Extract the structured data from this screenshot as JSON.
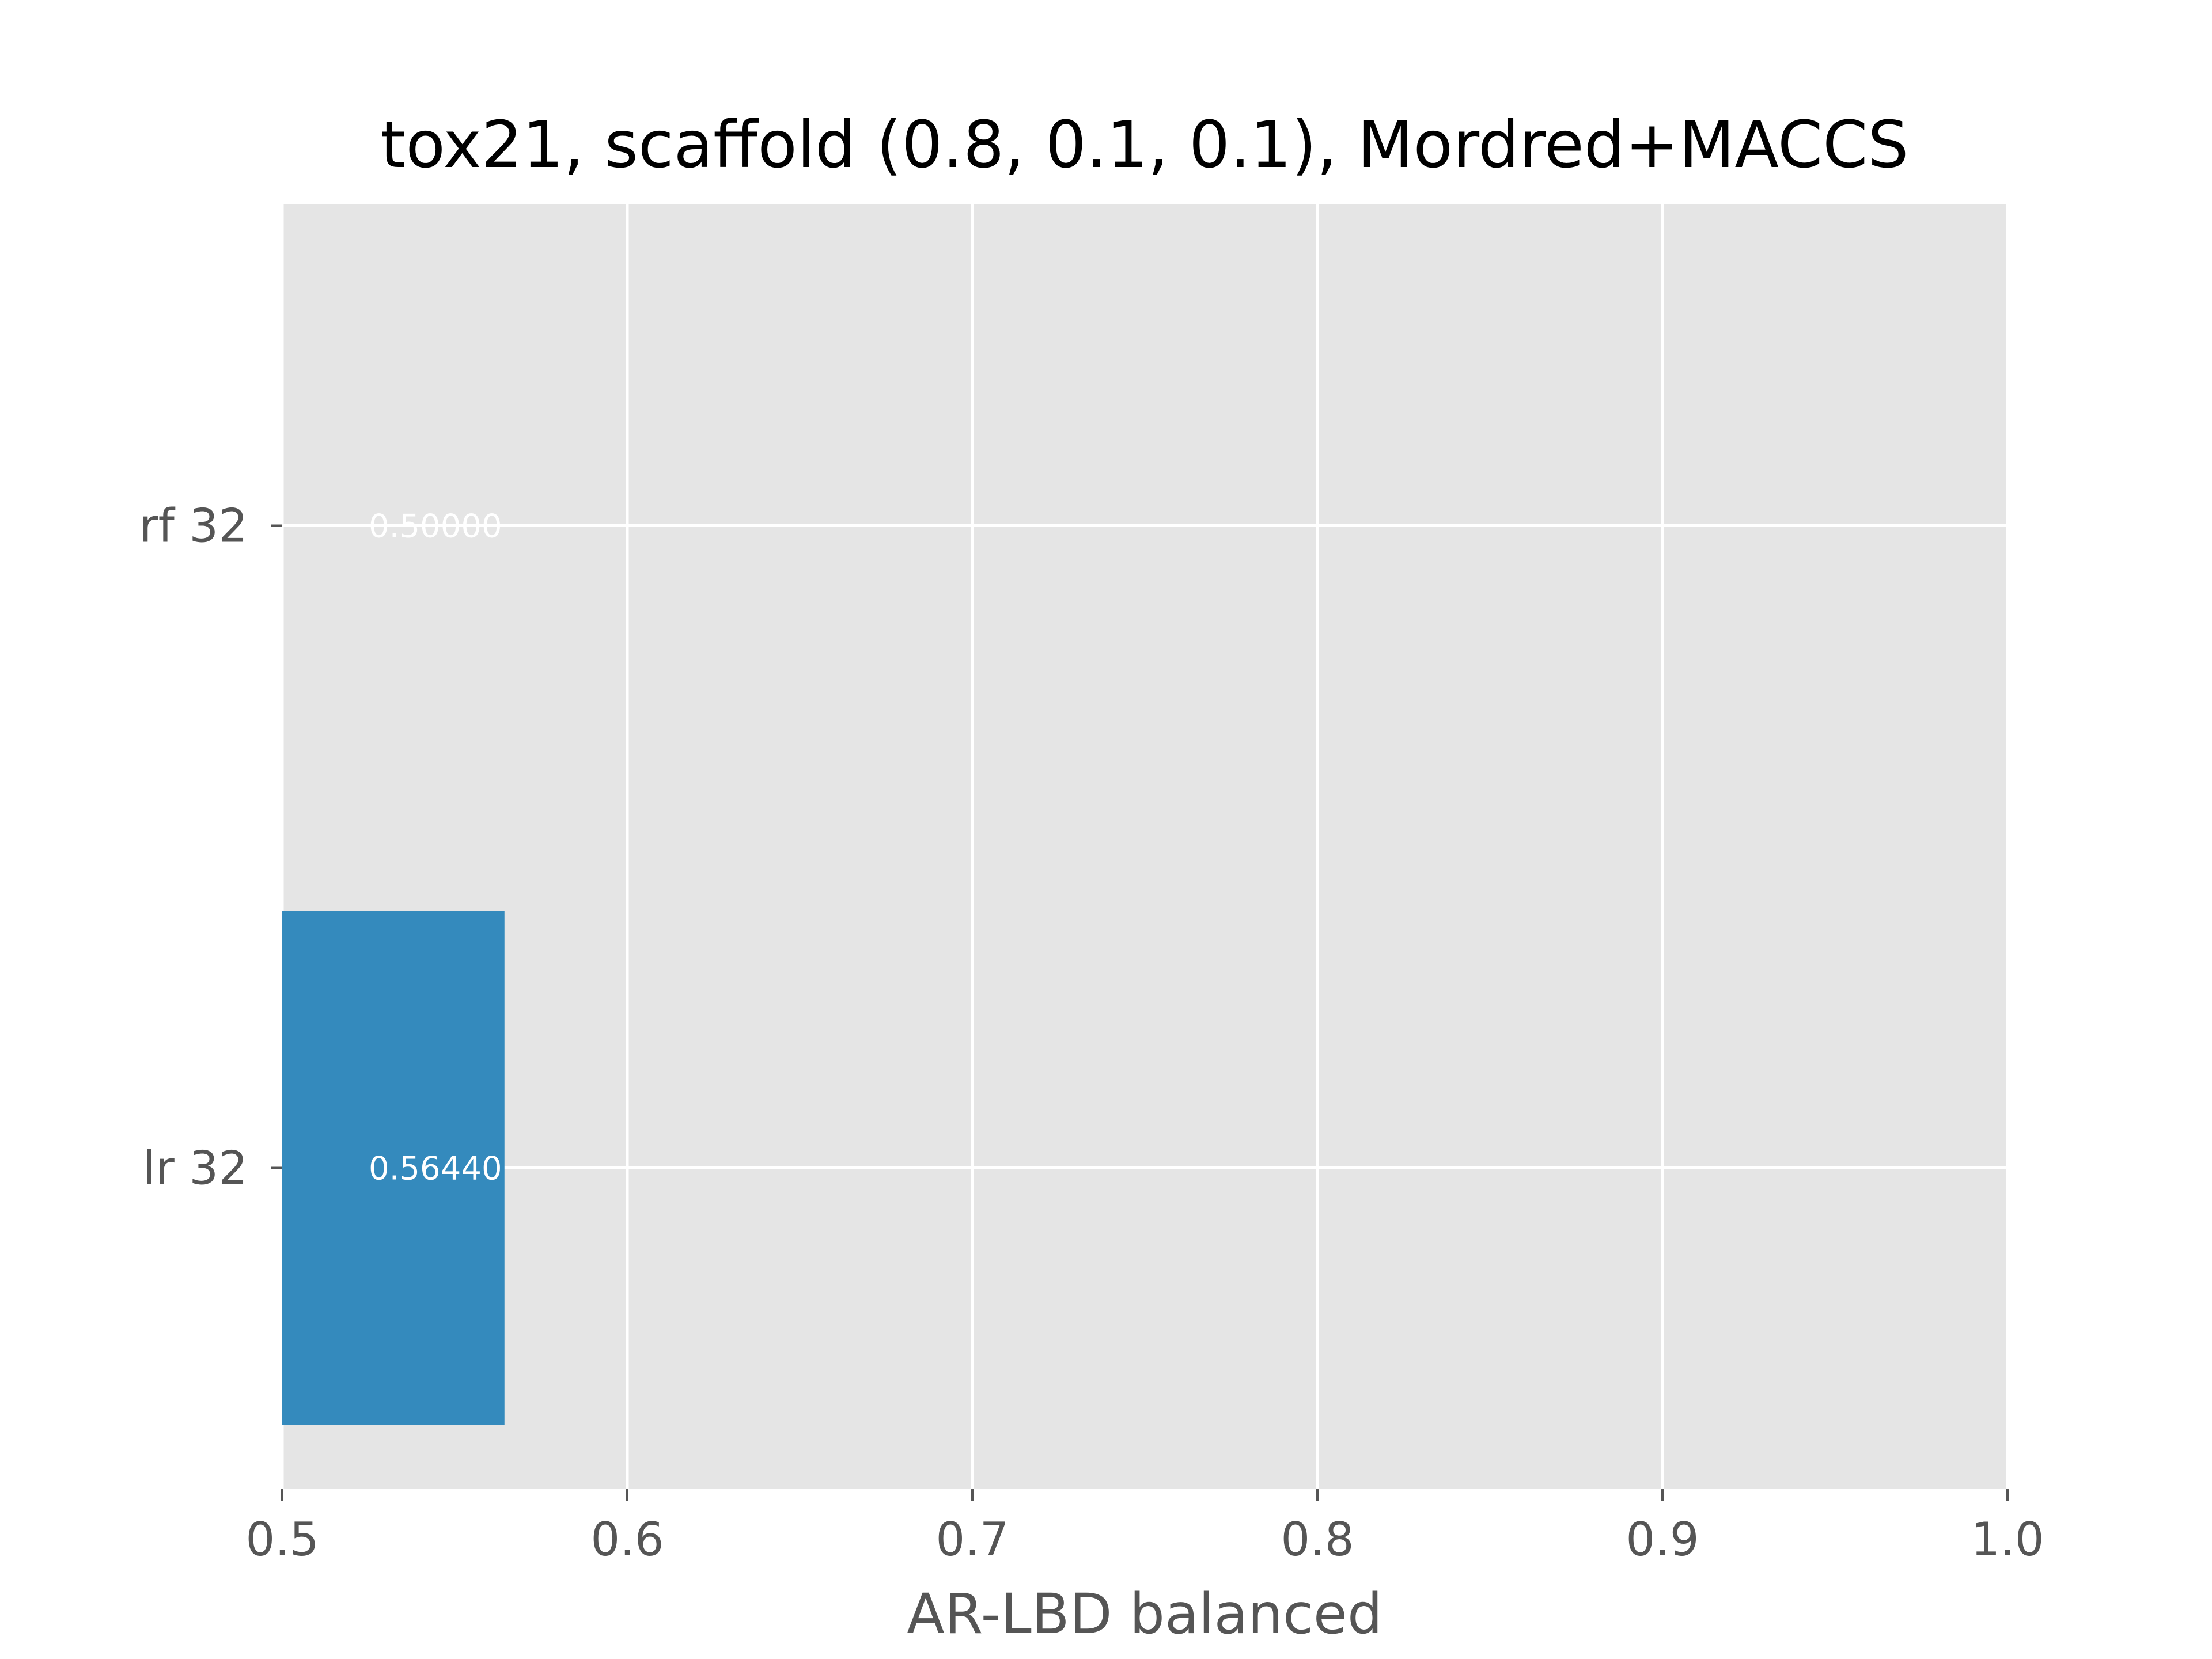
{
  "chart_data": {
    "type": "bar",
    "orientation": "horizontal",
    "title": "tox21, scaffold (0.8, 0.1, 0.1), Mordred+MACCS",
    "xlabel": "AR-LBD balanced",
    "ylabel": "",
    "categories": [
      "lr 32",
      "rf 32"
    ],
    "values": [
      0.5644,
      0.5
    ],
    "data_labels": [
      "0.56440",
      "0.50000"
    ],
    "xlim": [
      0.5,
      1.0
    ],
    "xticks": [
      0.5,
      0.6,
      0.7,
      0.8,
      0.9,
      1.0
    ],
    "xtick_labels": [
      "0.5",
      "0.6",
      "0.7",
      "0.8",
      "0.9",
      "1.0"
    ],
    "grid": true,
    "legend": "none",
    "colors": {
      "bar": "#348ABD",
      "plot_background": "#E5E5E5",
      "grid": "#FFFFFF",
      "tick_text": "#555555",
      "title_text": "#000000",
      "data_label": "#FFFFFF"
    }
  }
}
